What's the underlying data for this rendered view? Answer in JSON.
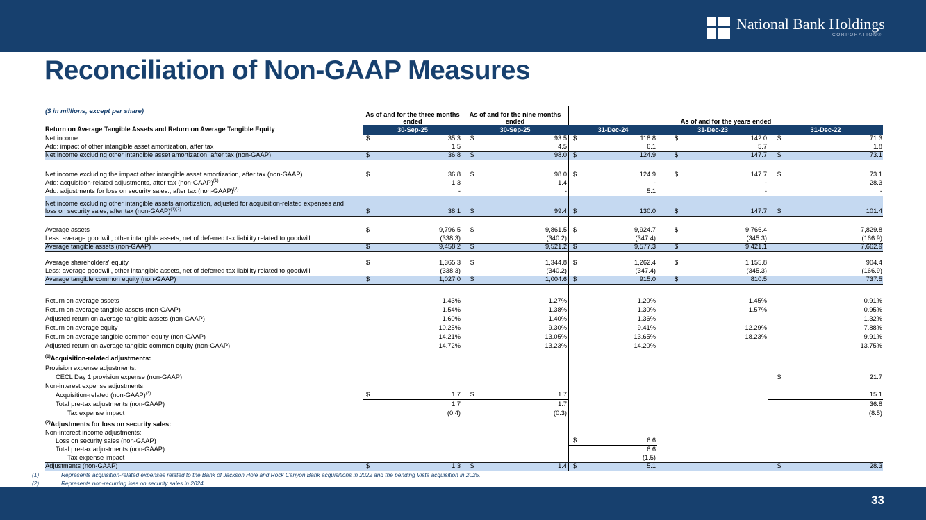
{
  "colors": {
    "navy": "#17406E",
    "highlight": "#C5D9F1",
    "white": "#FFFFFF"
  },
  "header": {
    "logo_title": "National Bank Holdings",
    "logo_subtitle": "CORPORATION®"
  },
  "title": "Reconciliation of Non-GAAP Measures",
  "footer": {
    "page_number": "33"
  },
  "table": {
    "caption": "($ in millions, except per share)",
    "section_label": "Return on Average Tangible Assets and Return on Average Tangible Equity",
    "col_groups": [
      {
        "line1": "As of and for the three months",
        "line2": "ended"
      },
      {
        "line1": "As of and for the nine months",
        "line2": "ended"
      },
      {
        "line1": "As of and for the years ended"
      }
    ],
    "columns": [
      "30-Sep-25",
      "30-Sep-25",
      "31-Dec-24",
      "31-Dec-23",
      "31-Dec-22"
    ],
    "rows": [
      {
        "label": "Net income",
        "h": 12,
        "cells": [
          {
            "d": "$",
            "v": "35.3"
          },
          {
            "d": "$",
            "v": "93.5"
          },
          {
            "d": "$",
            "v": "118.8"
          },
          {
            "d": "$",
            "v": "142.0"
          },
          {
            "d": "$",
            "v": "71.3"
          }
        ]
      },
      {
        "label": "Add: impact of other intangible asset amortization, after tax",
        "h": 12,
        "cells": [
          {
            "v": "1.5"
          },
          {
            "v": "4.5"
          },
          {
            "v": "6.1"
          },
          {
            "v": "5.7"
          },
          {
            "v": "1.8"
          }
        ]
      },
      {
        "label": "Net income excluding other intangible asset amortization, after tax (non-GAAP)",
        "hl": true,
        "h": 13,
        "cells": [
          {
            "d": "$",
            "v": "36.8"
          },
          {
            "d": "$",
            "v": "98.0"
          },
          {
            "d": "$",
            "v": "124.9"
          },
          {
            "d": "$",
            "v": "147.7"
          },
          {
            "d": "$",
            "v": "73.1"
          }
        ]
      },
      {
        "spacer": true,
        "h": 15
      },
      {
        "label": "Net income excluding the impact other intangible asset amortization, after tax (non-GAAP)",
        "h": 12,
        "cells": [
          {
            "d": "$",
            "v": "36.8"
          },
          {
            "d": "$",
            "v": "98.0"
          },
          {
            "d": "$",
            "v": "124.9"
          },
          {
            "d": "$",
            "v": "147.7"
          },
          {
            "d": "$",
            "v": "73.1"
          }
        ]
      },
      {
        "label": "Add: acquisition-related adjustments, after tax (non-GAAP)",
        "sup": "(1)",
        "h": 12,
        "cells": [
          {
            "v": "1.3"
          },
          {
            "v": "1.4"
          },
          {
            "v": "-"
          },
          {
            "v": "-"
          },
          {
            "v": "28.3"
          }
        ]
      },
      {
        "label": "Add: adjustments for loss on security sales:, after tax (non-GAAP)",
        "sup": "(2)",
        "h": 12,
        "cells": [
          {
            "v": "-"
          },
          {
            "v": "-"
          },
          {
            "v": "5.1"
          },
          {
            "v": "-"
          },
          {
            "v": "-"
          }
        ]
      },
      {
        "label": "Net income excluding other intangible assets amortization, adjusted for acquisition-related expenses and",
        "label2": "loss on security sales, after tax (non-GAAP)",
        "sup2": "(1)(2)",
        "hl": true,
        "h": 30,
        "cells": [
          {
            "d": "$",
            "v": "38.1"
          },
          {
            "d": "$",
            "v": "99.4"
          },
          {
            "d": "$",
            "v": "130.0"
          },
          {
            "d": "$",
            "v": "147.7"
          },
          {
            "d": "$",
            "v": "101.4"
          }
        ]
      },
      {
        "spacer": true,
        "h": 14
      },
      {
        "label": "Average assets",
        "h": 12,
        "cells": [
          {
            "d": "$",
            "v": "9,796.5"
          },
          {
            "d": "$",
            "v": "9,861.5"
          },
          {
            "d": "$",
            "v": "9,924.7"
          },
          {
            "d": "$",
            "v": "9,766.4"
          },
          {
            "v": "7,829.8"
          }
        ]
      },
      {
        "label": "Less: average goodwill, other intangible assets, net of deferred tax liability related to goodwill",
        "h": 12,
        "cells": [
          {
            "v": "(338.3)"
          },
          {
            "v": "(340.2)"
          },
          {
            "v": "(347.4)"
          },
          {
            "v": "(345.3)"
          },
          {
            "v": "(166.9)"
          }
        ]
      },
      {
        "label": "Average tangible assets (non-GAAP)",
        "hl": true,
        "h": 13,
        "cells": [
          {
            "d": "$",
            "v": "9,458.2"
          },
          {
            "d": "$",
            "v": "9,521.2"
          },
          {
            "d": "$",
            "v": "9,577.3"
          },
          {
            "d": "$",
            "v": "9,421.1"
          },
          {
            "v": "7,662.9"
          }
        ]
      },
      {
        "spacer": true,
        "h": 10
      },
      {
        "label": "Average shareholders' equity",
        "h": 12,
        "cells": [
          {
            "d": "$",
            "v": "1,365.3"
          },
          {
            "d": "$",
            "v": "1,344.8"
          },
          {
            "d": "$",
            "v": "1,262.4"
          },
          {
            "d": "$",
            "v": "1,155.8"
          },
          {
            "v": "904.4"
          }
        ]
      },
      {
        "label": "Less: average goodwill, other intangible assets, net of deferred tax liability related to goodwill",
        "h": 12,
        "cells": [
          {
            "v": "(338.3)"
          },
          {
            "v": "(340.2)"
          },
          {
            "v": "(347.4)"
          },
          {
            "v": "(345.3)"
          },
          {
            "v": "(166.9)"
          }
        ]
      },
      {
        "label": "Average tangible common equity (non-GAAP)",
        "hl": true,
        "h": 13,
        "cells": [
          {
            "d": "$",
            "v": "1,027.0"
          },
          {
            "d": "$",
            "v": "1,004.6"
          },
          {
            "d": "$",
            "v": "915.0"
          },
          {
            "d": "$",
            "v": "810.5"
          },
          {
            "v": "737.5"
          }
        ]
      },
      {
        "spacer": true,
        "h": 17
      },
      {
        "label": "Return on average assets",
        "h": 13,
        "cells": [
          {
            "v": "1.43%"
          },
          {
            "v": "1.27%"
          },
          {
            "v": "1.20%"
          },
          {
            "v": "1.45%"
          },
          {
            "v": "0.91%"
          }
        ]
      },
      {
        "label": "Return on average tangible assets (non-GAAP)",
        "h": 13,
        "cells": [
          {
            "v": "1.54%"
          },
          {
            "v": "1.38%"
          },
          {
            "v": "1.30%"
          },
          {
            "v": "1.57%"
          },
          {
            "v": "0.95%"
          }
        ]
      },
      {
        "label": "Adjusted return on average tangible assets (non-GAAP)",
        "h": 13,
        "cells": [
          {
            "v": "1.60%"
          },
          {
            "v": "1.40%"
          },
          {
            "v": "1.36%"
          },
          null,
          {
            "v": "1.32%"
          }
        ]
      },
      {
        "label": "Return on average equity",
        "h": 13,
        "cells": [
          {
            "v": "10.25%"
          },
          {
            "v": "9.30%"
          },
          {
            "v": "9.41%"
          },
          {
            "v": "12.29%"
          },
          {
            "v": "7.88%"
          }
        ]
      },
      {
        "label": "Return on average tangible common equity (non-GAAP)",
        "h": 13,
        "cells": [
          {
            "v": "14.21%"
          },
          {
            "v": "13.05%"
          },
          {
            "v": "13.65%"
          },
          {
            "v": "18.23%"
          },
          {
            "v": "9.91%"
          }
        ]
      },
      {
        "label": "Adjusted return on average tangible common equity (non-GAAP)",
        "h": 13,
        "cells": [
          {
            "v": "14.72%"
          },
          {
            "v": "13.23%"
          },
          {
            "v": "14.20%"
          },
          null,
          {
            "v": "13.75%"
          }
        ]
      },
      {
        "head": true,
        "sup": "(1)",
        "label": "Acquisition-related adjustments:",
        "h": 18
      },
      {
        "label": "Provision expense adjustments:",
        "h": 14
      },
      {
        "label": "CECL Day 1 provision expense (non-GAAP)",
        "indent": 1,
        "h": 13,
        "cells": [
          null,
          null,
          null,
          null,
          {
            "d": "$",
            "v": "21.7"
          }
        ]
      },
      {
        "label": "Non-interest expense adjustments:",
        "h": 13
      },
      {
        "label": "Acquisition-related (non-GAAP)",
        "sup": "(3)",
        "indent": 1,
        "h": 13,
        "cells": [
          {
            "d": "$",
            "v": "1.7",
            "u": true
          },
          {
            "d": "$",
            "v": "1.7",
            "u": true
          },
          null,
          null,
          {
            "v": "15.1",
            "u": true
          }
        ]
      },
      {
        "label": "Total pre-tax adjustments (non-GAAP)",
        "indent": 1,
        "h": 13,
        "cells": [
          {
            "v": "1.7"
          },
          {
            "v": "1.7"
          },
          null,
          null,
          {
            "v": "36.8"
          }
        ]
      },
      {
        "label": "Tax expense impact",
        "indent": 2,
        "h": 13,
        "cells": [
          {
            "v": "(0.4)"
          },
          {
            "v": "(0.3)"
          },
          null,
          null,
          {
            "v": "(8.5)"
          }
        ]
      },
      {
        "head": true,
        "sup": "(2)",
        "label": "Adjustments for loss on security sales:",
        "h": 16
      },
      {
        "label": "Non-interest income adjustments:",
        "h": 12
      },
      {
        "label": "Loss on security sales (non-GAAP)",
        "indent": 1,
        "h": 12,
        "cells": [
          null,
          null,
          {
            "d": "$",
            "v": "6.6",
            "u": true
          },
          null,
          null
        ]
      },
      {
        "label": "Total pre-tax adjustments (non-GAAP)",
        "indent": 1,
        "h": 12,
        "cells": [
          null,
          null,
          {
            "v": "6.6"
          },
          null,
          null
        ]
      },
      {
        "label": "Tax expense impact",
        "indent": 2,
        "h": 12,
        "cells": [
          null,
          null,
          {
            "v": "(1.5)"
          },
          null,
          null
        ]
      },
      {
        "label": "Adjustments (non-GAAP)",
        "hl": true,
        "h": 13,
        "cells": [
          {
            "d": "$",
            "v": "1.3"
          },
          {
            "d": "$",
            "v": "1.4"
          },
          {
            "d": "$",
            "v": "5.1"
          },
          null,
          {
            "d": "$",
            "v": "28.3"
          }
        ]
      }
    ]
  },
  "footnotes": [
    {
      "num": "(1)",
      "text": "Represents acquisition-related expenses related to the Bank of Jackson Hole and Rock Canyon Bank acquisitions in 2022 and the pending Vista acquisition in 2025."
    },
    {
      "num": "(2)",
      "text": "Represents non-recurring loss on security sales in 2024."
    }
  ]
}
